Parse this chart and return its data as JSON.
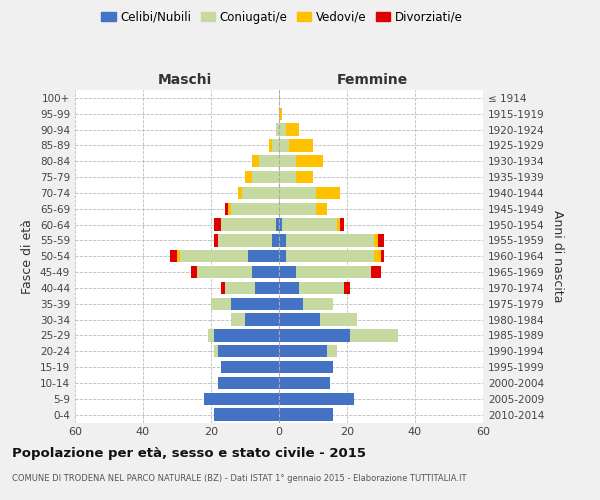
{
  "age_groups": [
    "0-4",
    "5-9",
    "10-14",
    "15-19",
    "20-24",
    "25-29",
    "30-34",
    "35-39",
    "40-44",
    "45-49",
    "50-54",
    "55-59",
    "60-64",
    "65-69",
    "70-74",
    "75-79",
    "80-84",
    "85-89",
    "90-94",
    "95-99",
    "100+"
  ],
  "birth_years": [
    "2010-2014",
    "2005-2009",
    "2000-2004",
    "1995-1999",
    "1990-1994",
    "1985-1989",
    "1980-1984",
    "1975-1979",
    "1970-1974",
    "1965-1969",
    "1960-1964",
    "1955-1959",
    "1950-1954",
    "1945-1949",
    "1940-1944",
    "1935-1939",
    "1930-1934",
    "1925-1929",
    "1920-1924",
    "1915-1919",
    "≤ 1914"
  ],
  "males": {
    "celibi": [
      19,
      22,
      18,
      17,
      18,
      19,
      10,
      14,
      7,
      8,
      9,
      2,
      1,
      0,
      0,
      0,
      0,
      0,
      0,
      0,
      0
    ],
    "coniugati": [
      0,
      0,
      0,
      0,
      1,
      2,
      4,
      6,
      9,
      16,
      20,
      16,
      16,
      14,
      11,
      8,
      6,
      2,
      1,
      0,
      0
    ],
    "vedovi": [
      0,
      0,
      0,
      0,
      0,
      0,
      0,
      0,
      0,
      0,
      1,
      0,
      0,
      1,
      1,
      2,
      2,
      1,
      0,
      0,
      0
    ],
    "divorziati": [
      0,
      0,
      0,
      0,
      0,
      0,
      0,
      0,
      1,
      2,
      2,
      1,
      2,
      1,
      0,
      0,
      0,
      0,
      0,
      0,
      0
    ]
  },
  "females": {
    "nubili": [
      16,
      22,
      15,
      16,
      14,
      21,
      12,
      7,
      6,
      5,
      2,
      2,
      1,
      0,
      0,
      0,
      0,
      0,
      0,
      0,
      0
    ],
    "coniugate": [
      0,
      0,
      0,
      0,
      3,
      14,
      11,
      9,
      13,
      22,
      26,
      26,
      16,
      11,
      11,
      5,
      5,
      3,
      2,
      0,
      0
    ],
    "vedove": [
      0,
      0,
      0,
      0,
      0,
      0,
      0,
      0,
      0,
      0,
      2,
      1,
      1,
      3,
      7,
      5,
      8,
      7,
      4,
      1,
      0
    ],
    "divorziate": [
      0,
      0,
      0,
      0,
      0,
      0,
      0,
      0,
      2,
      3,
      1,
      2,
      1,
      0,
      0,
      0,
      0,
      0,
      0,
      0,
      0
    ]
  },
  "colors": {
    "celibi": "#4472C4",
    "coniugati": "#c5d9a0",
    "vedovi": "#FFC000",
    "divorziati": "#e00000"
  },
  "xlim": 60,
  "title": "Popolazione per età, sesso e stato civile - 2015",
  "subtitle": "COMUNE DI TRODENA NEL PARCO NATURALE (BZ) - Dati ISTAT 1° gennaio 2015 - Elaborazione TUTTITALIA.IT",
  "ylabel_left": "Fasce di età",
  "ylabel_right": "Anni di nascita",
  "xlabel_maschi": "Maschi",
  "xlabel_femmine": "Femmine",
  "bg_color": "#f0f0f0",
  "plot_bg": "#ffffff",
  "legend_labels": [
    "Celibi/Nubili",
    "Coniugati/e",
    "Vedovi/e",
    "Divorziati/e"
  ]
}
